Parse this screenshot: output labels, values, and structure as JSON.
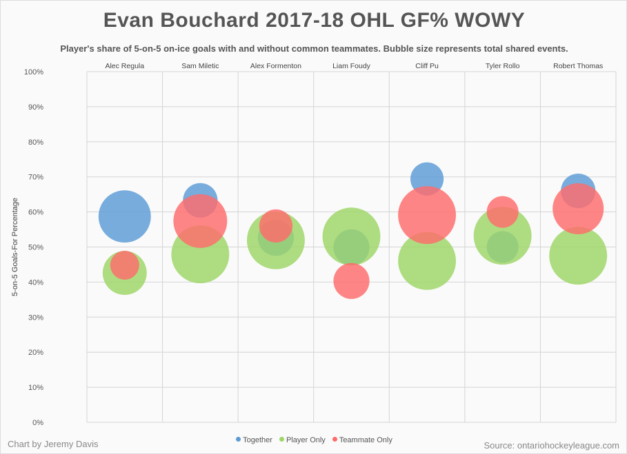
{
  "chart_data": {
    "type": "scatter",
    "title": "Evan Bouchard 2017-18 OHL GF% WOWY",
    "subtitle": "Player's share of 5-on-5 on-ice goals with and without common teammates. Bubble size represents total shared events.",
    "ylabel": "5-on-5 Goals-For Percentage",
    "ylim": [
      0,
      100
    ],
    "yticks": [
      "0%",
      "10%",
      "20%",
      "30%",
      "40%",
      "50%",
      "60%",
      "70%",
      "80%",
      "90%",
      "100%"
    ],
    "categories": [
      "Alec Regula",
      "Sam Miletic",
      "Alex Formenton",
      "Liam Foudy",
      "Cliff Pu",
      "Tyler Rollo",
      "Robert Thomas"
    ],
    "series": [
      {
        "name": "Together",
        "color": "#5b9bd5",
        "values": [
          58.7,
          63.3,
          52.6,
          49.9,
          69.4,
          50.0,
          66.0
        ],
        "sizes": [
          14.4,
          6.3,
          6.8,
          6.8,
          5.8,
          5.3,
          6.3
        ]
      },
      {
        "name": "Player Only",
        "color": "#9ed667",
        "values": [
          42.6,
          47.9,
          51.9,
          53.0,
          46.0,
          53.2,
          47.5
        ],
        "sizes": [
          10.2,
          17.6,
          17.6,
          17.6,
          17.6,
          17.6,
          17.6
        ]
      },
      {
        "name": "Teammate Only",
        "color": "#ff6b6b",
        "values": [
          44.8,
          57.4,
          56.0,
          40.3,
          59.1,
          60.0,
          60.9
        ],
        "sizes": [
          4.4,
          15.2,
          5.8,
          6.8,
          17.6,
          5.3,
          13.7
        ]
      }
    ],
    "grid": true,
    "legend_position": "bottom"
  },
  "credit": "Chart by Jeremy Davis",
  "source": "Source: ontariohockeyleague.com"
}
